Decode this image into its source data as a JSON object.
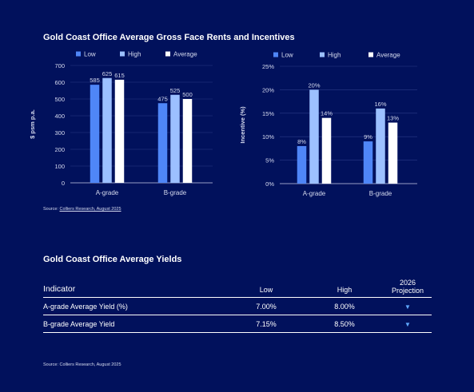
{
  "rents_section": {
    "title": "Gold Coast Office Average Gross Face Rents and Incentives",
    "source_prefix": "Source: ",
    "source_link": "Colliers Research, August 2025"
  },
  "yields_section": {
    "title": "Gold Coast Office Average Yields",
    "source": "Source: Colliers Research, August 2025"
  },
  "colors": {
    "low": "#4f86f7",
    "high": "#9cc0ff",
    "average": "#ffffff",
    "background": "#01115c",
    "arrow": "#5fa8ff"
  },
  "chart_data": [
    {
      "type": "bar",
      "categories": [
        "A-grade",
        "B-grade"
      ],
      "series": [
        {
          "name": "Low",
          "values": [
            585,
            475
          ]
        },
        {
          "name": "High",
          "values": [
            625,
            525
          ]
        },
        {
          "name": "Average",
          "values": [
            615,
            500
          ]
        }
      ],
      "ylabel": "$ psm p.a.",
      "ylim": [
        0,
        700
      ],
      "yticks": [
        "0",
        "100",
        "200",
        "300",
        "400",
        "500",
        "600",
        "700"
      ],
      "data_labels": [
        [
          "585",
          "625",
          "615"
        ],
        [
          "475",
          "525",
          "500"
        ]
      ],
      "legend_position": "top"
    },
    {
      "type": "bar",
      "categories": [
        "A-grade",
        "B-grade"
      ],
      "series": [
        {
          "name": "Low",
          "values": [
            8,
            9
          ]
        },
        {
          "name": "High",
          "values": [
            20,
            16
          ]
        },
        {
          "name": "Average",
          "values": [
            14,
            13
          ]
        }
      ],
      "ylabel": "Incentive (%)",
      "ylim": [
        0,
        25
      ],
      "yticks": [
        "0%",
        "5%",
        "10%",
        "15%",
        "20%",
        "25%"
      ],
      "data_labels": [
        [
          "8%",
          "20%",
          "14%"
        ],
        [
          "9%",
          "16%",
          "13%"
        ]
      ],
      "legend_position": "top"
    }
  ],
  "table": {
    "headers": [
      "Indicator",
      "Low",
      "High",
      "2026",
      "Projection"
    ],
    "rows": [
      {
        "indicator": "A-grade Average Yield (%)",
        "low": "7.00%",
        "high": "8.00%",
        "projection": "down-arrow-icon"
      },
      {
        "indicator": "B-grade Average Yield",
        "low": "7.15%",
        "high": "8.50%",
        "projection": "down-arrow-icon"
      }
    ]
  }
}
